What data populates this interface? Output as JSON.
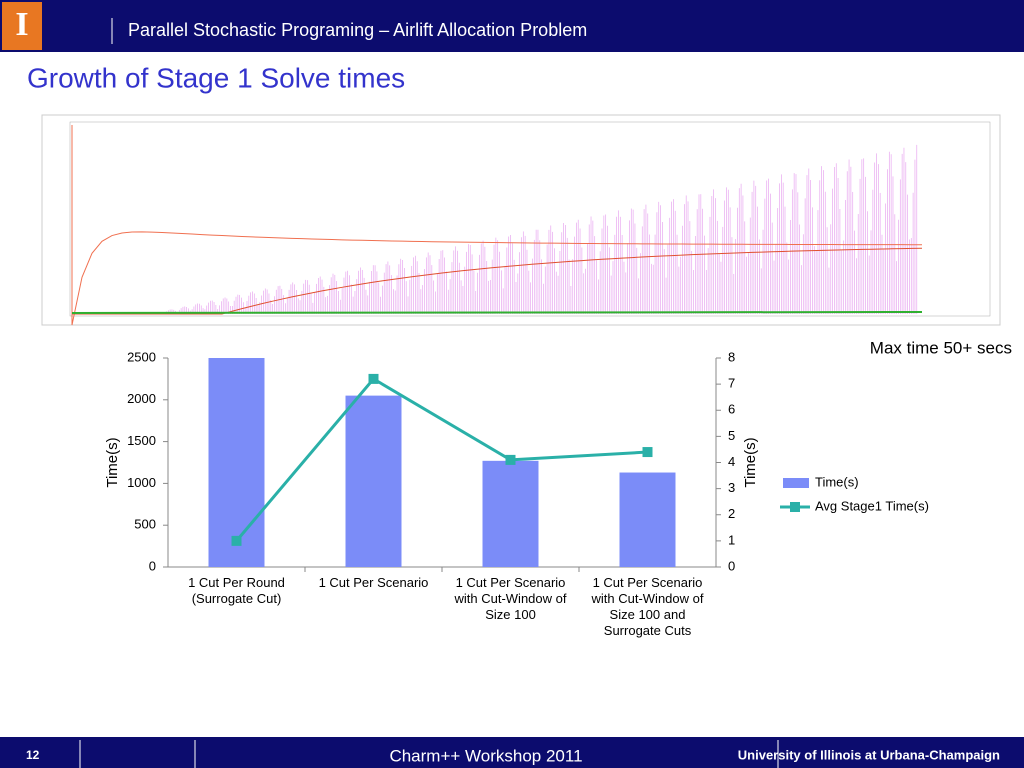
{
  "header": {
    "title": "Parallel Stochastic Programing – Airlift Allocation Problem"
  },
  "slide_title": "Growth of Stage 1 Solve times",
  "annotation": "Max time 50+ secs",
  "chart_data": {
    "type": "bar_line",
    "categories": [
      "1 Cut Per Round (Surrogate Cut)",
      "1 Cut Per Scenario",
      "1 Cut Per Scenario with Cut-Window of Size 100",
      "1 Cut Per Scenario with Cut-Window of Size 100 and Surrogate Cuts"
    ],
    "y_label": "Time(s)",
    "y2_label": "Time(s)",
    "ylim": [
      0,
      2500
    ],
    "yticks": [
      0,
      500,
      1000,
      1500,
      2000,
      2500
    ],
    "y2lim": [
      0,
      8
    ],
    "y2ticks": [
      0,
      1,
      2,
      3,
      4,
      5,
      6,
      7,
      8
    ],
    "grid": false,
    "series": [
      {
        "name": "Time(s)",
        "color": "#7b8cf8",
        "type": "bar",
        "values": [
          2500,
          2050,
          1270,
          1130
        ]
      },
      {
        "name": "Avg Stage1 Time(s)",
        "color": "#2ab0a8",
        "type": "line",
        "axis": "y2",
        "values": [
          1,
          7.2,
          4.1,
          4.4
        ]
      }
    ]
  },
  "footer": {
    "page": "12",
    "event": "Charm++ Workshop 2011",
    "org": "University of Illinois at Urbana-Champaign"
  }
}
